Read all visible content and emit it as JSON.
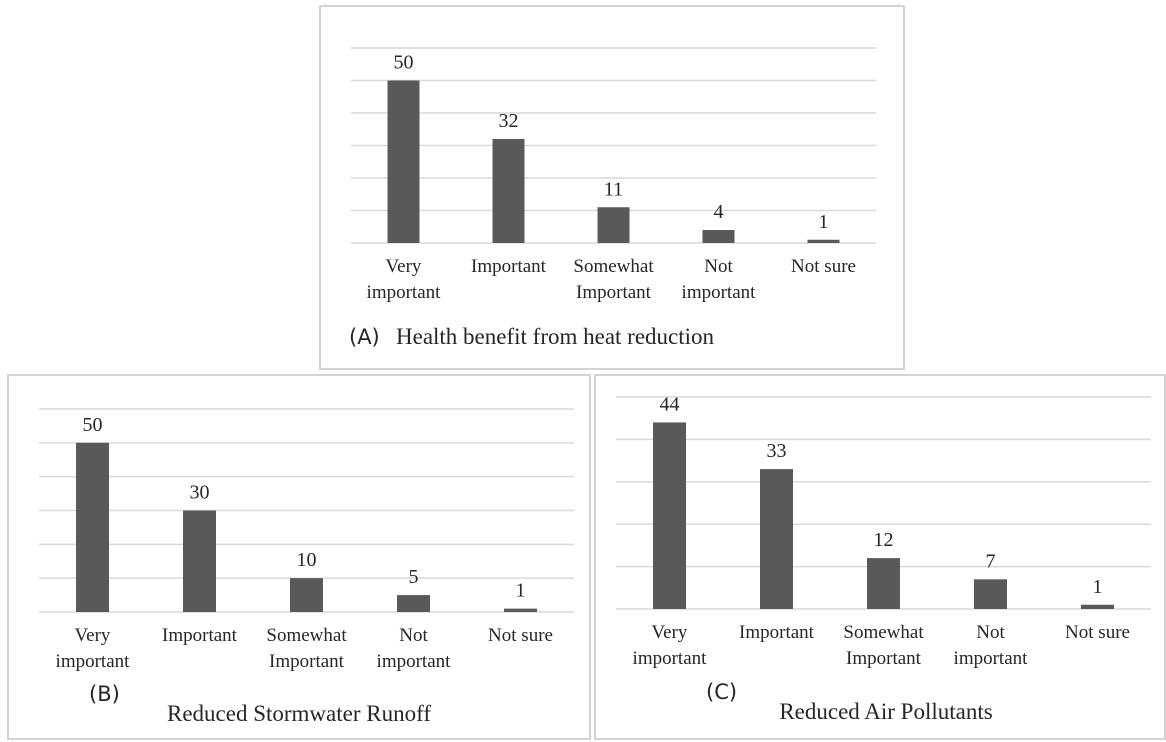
{
  "chart_data": [
    {
      "type": "bar",
      "panel_letter": "(A)",
      "title": "Health  benefit from heat reduction",
      "categories": [
        [
          "Very",
          "important"
        ],
        [
          "Important"
        ],
        [
          "Somewhat",
          "Important"
        ],
        [
          "Not",
          "important"
        ],
        [
          "Not sure"
        ]
      ],
      "values": [
        50,
        32,
        11,
        4,
        1
      ],
      "ylim": [
        0,
        60
      ],
      "gridlines": 6,
      "grid": true,
      "bar_color": "#595959",
      "grid_color": "#d9d9d9"
    },
    {
      "type": "bar",
      "panel_letter": "(B)",
      "title": "Reduced Stormwater Runoff",
      "categories": [
        [
          "Very",
          "important"
        ],
        [
          "Important"
        ],
        [
          "Somewhat",
          "Important"
        ],
        [
          "Not",
          "important"
        ],
        [
          "Not sure"
        ]
      ],
      "values": [
        50,
        30,
        10,
        5,
        1
      ],
      "ylim": [
        0,
        60
      ],
      "gridlines": 6,
      "grid": true,
      "bar_color": "#595959",
      "grid_color": "#d9d9d9"
    },
    {
      "type": "bar",
      "panel_letter": "(C)",
      "title": "Reduced Air Pollutants",
      "categories": [
        [
          "Very",
          "important"
        ],
        [
          "Important"
        ],
        [
          "Somewhat",
          "Important"
        ],
        [
          "Not",
          "important"
        ],
        [
          "Not sure"
        ]
      ],
      "values": [
        44,
        33,
        12,
        7,
        1
      ],
      "ylim": [
        0,
        50
      ],
      "gridlines": 5,
      "grid": true,
      "bar_color": "#595959",
      "grid_color": "#d9d9d9"
    }
  ]
}
